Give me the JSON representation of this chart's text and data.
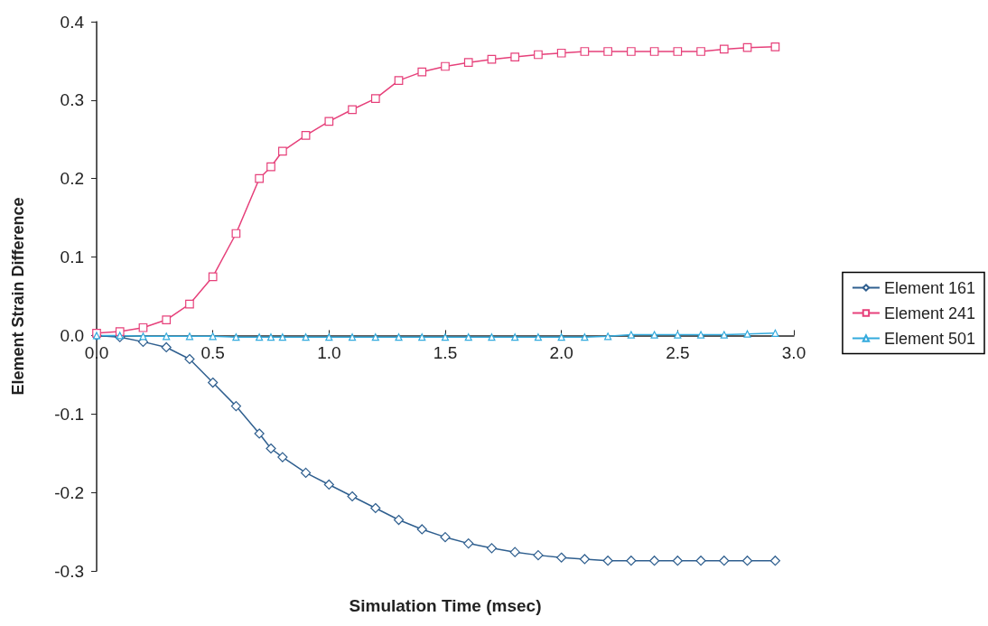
{
  "chart_data": {
    "type": "line",
    "xlabel": "Simulation Time (msec)",
    "ylabel": "Element Strain Difference",
    "xlim": [
      0,
      3
    ],
    "xticks": [
      {
        "value": 0,
        "label": "0.0"
      },
      0.5,
      {
        "value": 1,
        "label": "1.0"
      },
      1.5,
      {
        "value": 2,
        "label": "2.0"
      },
      2.5,
      {
        "value": 3,
        "label": "3.0"
      }
    ],
    "ylim": [
      -0.3,
      0.4
    ],
    "yticks": [
      -0.3,
      -0.2,
      -0.1,
      {
        "value": 0,
        "label": "0.0"
      },
      0.1,
      0.2,
      0.3,
      0.4
    ],
    "grid": false,
    "legend": "right",
    "x": [
      0,
      0.1,
      0.2,
      0.3,
      0.4,
      0.5,
      0.6,
      0.7,
      0.75,
      0.8,
      0.9,
      1.0,
      1.1,
      1.2,
      1.3,
      1.4,
      1.5,
      1.6,
      1.7,
      1.8,
      1.9,
      2.0,
      2.1,
      2.2,
      2.3,
      2.4,
      2.5,
      2.6,
      2.7,
      2.8,
      2.92
    ],
    "series": [
      {
        "name": "Element 161",
        "color": "#2f5f8f",
        "marker": "diamond",
        "values": [
          0,
          -0.002,
          -0.008,
          -0.015,
          -0.03,
          -0.06,
          -0.09,
          -0.125,
          -0.144,
          -0.155,
          -0.175,
          -0.19,
          -0.205,
          -0.22,
          -0.235,
          -0.247,
          -0.257,
          -0.265,
          -0.271,
          -0.276,
          -0.28,
          -0.283,
          -0.285,
          -0.287,
          -0.287,
          -0.287,
          -0.287,
          -0.287,
          -0.287,
          -0.287,
          -0.287
        ]
      },
      {
        "name": "Element 241",
        "color": "#e6407a",
        "marker": "square",
        "values": [
          0.003,
          0.005,
          0.01,
          0.02,
          0.04,
          0.075,
          0.13,
          0.2,
          0.215,
          0.235,
          0.255,
          0.273,
          0.288,
          0.302,
          0.325,
          0.336,
          0.343,
          0.348,
          0.352,
          0.355,
          0.358,
          0.36,
          0.362,
          0.362,
          0.362,
          0.362,
          0.362,
          0.362,
          0.365,
          0.367,
          0.368
        ]
      },
      {
        "name": "Element 501",
        "color": "#33aadd",
        "marker": "triangle",
        "values": [
          0,
          0,
          -0.001,
          -0.001,
          -0.001,
          -0.001,
          -0.002,
          -0.002,
          -0.002,
          -0.002,
          -0.002,
          -0.002,
          -0.002,
          -0.002,
          -0.002,
          -0.002,
          -0.002,
          -0.002,
          -0.002,
          -0.002,
          -0.002,
          -0.002,
          -0.002,
          -0.001,
          0.001,
          0.001,
          0.001,
          0.001,
          0.001,
          0.002,
          0.003
        ]
      }
    ]
  }
}
